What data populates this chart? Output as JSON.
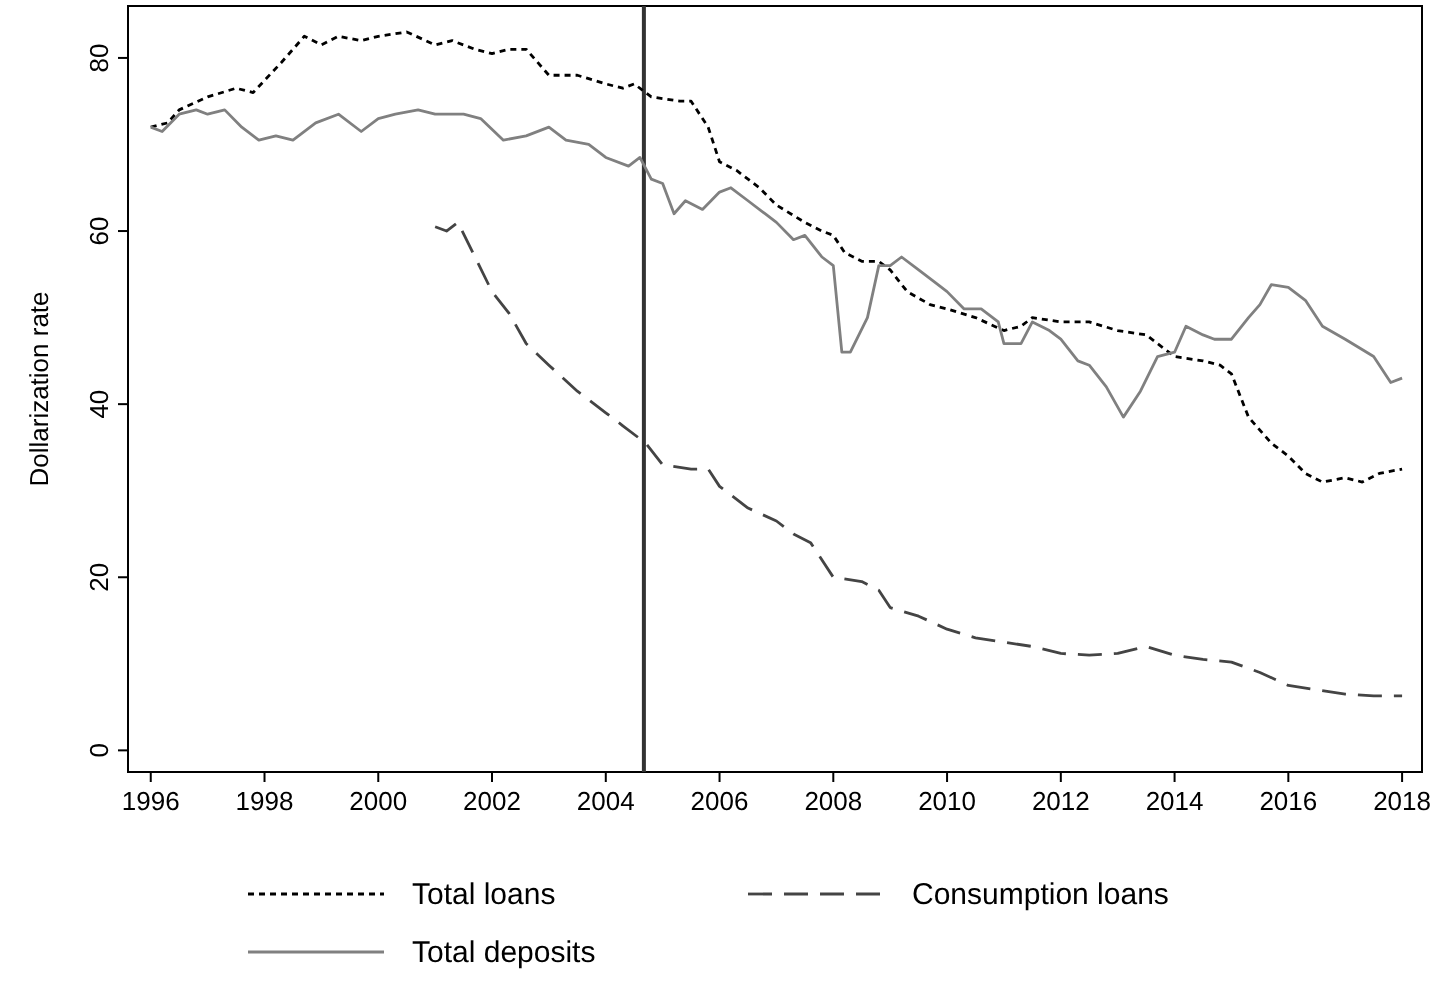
{
  "chart_data": {
    "type": "line",
    "ylabel": "Dollarization rate",
    "xlim": [
      1995.6,
      2018.35
    ],
    "xticks": [
      1996,
      1998,
      2000,
      2002,
      2004,
      2006,
      2008,
      2010,
      2012,
      2014,
      2016,
      2018
    ],
    "ylim": [
      -2.5,
      86
    ],
    "yticks": [
      0,
      20,
      40,
      60,
      80
    ],
    "grid": false,
    "legend": "bottom",
    "marker": "none",
    "ref_lines": [
      {
        "axis": "x",
        "value": 2004.67,
        "color": "#333333",
        "line_style": "solid"
      }
    ],
    "series": [
      {
        "name": "Total loans",
        "color": "#000000",
        "line_style": "dotted",
        "x": [
          1996,
          1996.3,
          1996.5,
          1997,
          1997.5,
          1997.8,
          1998.3,
          1998.7,
          1999,
          1999.3,
          1999.7,
          2000,
          2000.5,
          2001,
          2001.3,
          2001.7,
          2002,
          2002.3,
          2002.6,
          2003,
          2003.5,
          2004,
          2004.3,
          2004.5,
          2004.8,
          2005.3,
          2005.5,
          2005.8,
          2006,
          2006.3,
          2006.7,
          2007,
          2007.5,
          2007.8,
          2008,
          2008.2,
          2008.5,
          2008.8,
          2009,
          2009.3,
          2009.7,
          2010,
          2010.5,
          2011,
          2011.3,
          2011.5,
          2012,
          2012.5,
          2013,
          2013.5,
          2013.8,
          2014,
          2014.5,
          2014.8,
          2015,
          2015.3,
          2015.7,
          2016,
          2016.3,
          2016.6,
          2017,
          2017.3,
          2017.6,
          2018
        ],
        "values": [
          72,
          72.5,
          74,
          75.5,
          76.5,
          76,
          79.5,
          82.5,
          81.5,
          82.5,
          82,
          82.5,
          83,
          81.5,
          82,
          81,
          80.5,
          81,
          81,
          78,
          78,
          77,
          76.5,
          77,
          75.5,
          75,
          75,
          72,
          68,
          67,
          65,
          63,
          61,
          60,
          59.5,
          57.5,
          56.5,
          56.5,
          55.5,
          53,
          51.5,
          51,
          50,
          48.5,
          49,
          50,
          49.5,
          49.5,
          48.5,
          48,
          46.5,
          45.5,
          45,
          44.5,
          43.5,
          38.5,
          35.5,
          34,
          32,
          31,
          31.5,
          31,
          32,
          32.5
        ]
      },
      {
        "name": "Consumption loans",
        "color": "#444444",
        "line_style": "dashed",
        "x": [
          2001,
          2001.2,
          2001.4,
          2001.7,
          2002,
          2002.3,
          2002.6,
          2003,
          2003.5,
          2004,
          2004.3,
          2004.7,
          2005,
          2005.5,
          2005.8,
          2006,
          2006.5,
          2007,
          2007.3,
          2007.6,
          2008,
          2008.5,
          2008.8,
          2009,
          2009.5,
          2010,
          2010.5,
          2011,
          2011.5,
          2012,
          2012.5,
          2013,
          2013.5,
          2014,
          2014.5,
          2015,
          2015.5,
          2016,
          2016.5,
          2017,
          2017.5,
          2018
        ],
        "values": [
          60.5,
          60,
          61,
          57,
          53,
          50.5,
          47,
          44.5,
          41.5,
          39,
          37.5,
          35.5,
          33,
          32.5,
          32.5,
          30.5,
          28,
          26.5,
          25,
          24,
          20,
          19.5,
          18.5,
          16.5,
          15.5,
          14,
          13,
          12.5,
          12,
          11.2,
          11,
          11.2,
          12,
          11,
          10.5,
          10.2,
          9,
          7.5,
          7,
          6.5,
          6.3,
          6.3
        ]
      },
      {
        "name": "Total deposits",
        "color": "#808080",
        "line_style": "solid",
        "x": [
          1996,
          1996.2,
          1996.5,
          1996.8,
          1997,
          1997.3,
          1997.6,
          1997.9,
          1998.2,
          1998.5,
          1998.9,
          1999.3,
          1999.7,
          2000,
          2000.3,
          2000.7,
          2001,
          2001.5,
          2001.8,
          2002.2,
          2002.6,
          2003,
          2003.3,
          2003.7,
          2004,
          2004.4,
          2004.6,
          2004.8,
          2005,
          2005.2,
          2005.4,
          2005.7,
          2006,
          2006.2,
          2006.5,
          2006.8,
          2007,
          2007.3,
          2007.5,
          2007.8,
          2008,
          2008.15,
          2008.3,
          2008.6,
          2008.8,
          2009,
          2009.2,
          2009.5,
          2009.8,
          2010,
          2010.3,
          2010.6,
          2010.9,
          2011,
          2011.3,
          2011.5,
          2011.8,
          2012,
          2012.3,
          2012.5,
          2012.8,
          2013.1,
          2013.4,
          2013.7,
          2014,
          2014.2,
          2014.5,
          2014.7,
          2015,
          2015.3,
          2015.5,
          2015.7,
          2016,
          2016.3,
          2016.6,
          2017,
          2017.5,
          2017.8,
          2018
        ],
        "values": [
          72,
          71.5,
          73.5,
          74,
          73.5,
          74,
          72,
          70.5,
          71,
          70.5,
          72.5,
          73.5,
          71.5,
          73,
          73.5,
          74,
          73.5,
          73.5,
          73,
          70.5,
          71,
          72,
          70.5,
          70,
          68.5,
          67.5,
          68.5,
          66,
          65.5,
          62,
          63.5,
          62.5,
          64.5,
          65,
          63.5,
          62,
          61,
          59,
          59.5,
          57,
          56,
          46,
          46,
          50,
          56,
          56,
          57,
          55.5,
          54,
          53,
          51,
          51,
          49.5,
          47,
          47,
          49.5,
          48.5,
          47.5,
          45,
          44.5,
          42,
          38.5,
          41.5,
          45.5,
          46,
          49,
          48,
          47.5,
          47.5,
          50,
          51.5,
          53.8,
          53.5,
          52,
          49,
          47.5,
          45.5,
          42.5,
          43
        ]
      }
    ]
  }
}
